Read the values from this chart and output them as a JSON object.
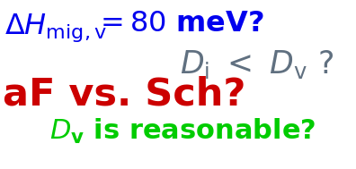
{
  "bg_color": "#ffffff",
  "line1_color": "#0000ee",
  "line2_color": "#607080",
  "line3_color": "#cc0000",
  "line4_color": "#00cc00",
  "figsize": [
    3.96,
    1.89
  ],
  "dpi": 100,
  "line1_text_a": "$\\Delta \\mathit{H}_{\\mathrm{mig,v}}$",
  "line1_text_b": "$= 80\\ \\mathrm{meV}?$",
  "line2_text": "$\\mathit{D}_{\\mathrm{i}} < \\mathit{D}_{\\mathrm{v}}\\ ?$",
  "line3_text": "aF vs. Sch?",
  "line4_text_a": "$\\mathit{D}_{\\mathrm{v}}$",
  "line4_text_b": " is reasonable?"
}
